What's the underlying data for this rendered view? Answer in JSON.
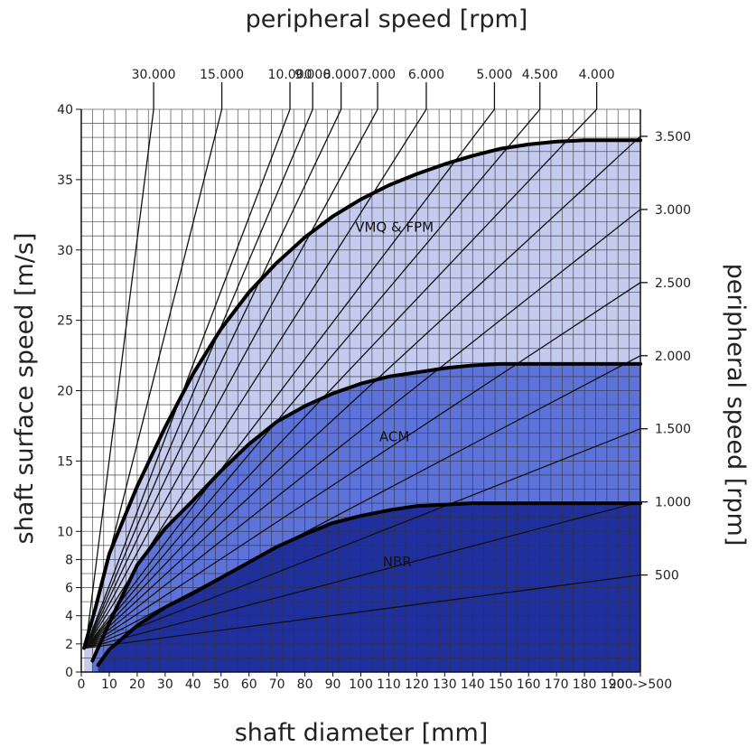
{
  "chart_data": {
    "type": "line",
    "title": "peripheral speed [rpm]",
    "xlabel": "shaft diameter [mm]",
    "ylabel": "shaft surface speed [m/s]",
    "right_label": "peripheral speed [rpm]",
    "xlim": [
      0,
      200
    ],
    "ylim": [
      0,
      40
    ],
    "grid": true,
    "x_ticks": [
      "0",
      "10",
      "20",
      "30",
      "40",
      "50",
      "60",
      "70",
      "80",
      "90",
      "100",
      "110",
      "120",
      "130",
      "140",
      "150",
      "160",
      "170",
      "180",
      "190",
      "200->500"
    ],
    "y_ticks": [
      {
        "v": 0,
        "label": "0"
      },
      {
        "v": 2,
        "label": "2"
      },
      {
        "v": 4,
        "label": "4"
      },
      {
        "v": 6,
        "label": "6"
      },
      {
        "v": 8,
        "label": "8"
      },
      {
        "v": 10,
        "label": "10"
      },
      {
        "v": 15,
        "label": "15"
      },
      {
        "v": 20,
        "label": "20"
      },
      {
        "v": 25,
        "label": "25"
      },
      {
        "v": 30,
        "label": "30"
      },
      {
        "v": 35,
        "label": "35"
      },
      {
        "v": 40,
        "label": "40"
      }
    ],
    "rpm_lines": [
      {
        "rpm": 30000,
        "label": "30.000",
        "edge": "top"
      },
      {
        "rpm": 15000,
        "label": "15.000",
        "edge": "top"
      },
      {
        "rpm": 10000,
        "label": "10.000",
        "edge": "top"
      },
      {
        "rpm": 9000,
        "label": "9.000",
        "edge": "top"
      },
      {
        "rpm": 8000,
        "label": "8.000",
        "edge": "top"
      },
      {
        "rpm": 7000,
        "label": "7.000",
        "edge": "top"
      },
      {
        "rpm": 6000,
        "label": "6.000",
        "edge": "top"
      },
      {
        "rpm": 5000,
        "label": "5.000",
        "edge": "top"
      },
      {
        "rpm": 4500,
        "label": "4.500",
        "edge": "top"
      },
      {
        "rpm": 4000,
        "label": "4.000",
        "edge": "top"
      },
      {
        "rpm": 3500,
        "label": "3.500",
        "edge": "right"
      },
      {
        "rpm": 3000,
        "label": "3.000",
        "edge": "right"
      },
      {
        "rpm": 2500,
        "label": "2.500",
        "edge": "right"
      },
      {
        "rpm": 2000,
        "label": "2.000",
        "edge": "right"
      },
      {
        "rpm": 1500,
        "label": "1.500",
        "edge": "right"
      },
      {
        "rpm": 1000,
        "label": "1.000",
        "edge": "right"
      },
      {
        "rpm": 500,
        "label": "500",
        "edge": "right"
      }
    ],
    "regions": [
      {
        "name": "VMQ & FPM",
        "fill": "#c5cbef",
        "label_at": {
          "x": 112,
          "y": 31.3
        },
        "curve": [
          {
            "x": 1,
            "y": 1.7
          },
          {
            "x": 5,
            "y": 4.5
          },
          {
            "x": 10,
            "y": 8.4
          },
          {
            "x": 20,
            "y": 13.2
          },
          {
            "x": 30,
            "y": 17.4
          },
          {
            "x": 40,
            "y": 21.2
          },
          {
            "x": 50,
            "y": 24.4
          },
          {
            "x": 60,
            "y": 27.0
          },
          {
            "x": 70,
            "y": 29.1
          },
          {
            "x": 80,
            "y": 30.9
          },
          {
            "x": 90,
            "y": 32.4
          },
          {
            "x": 100,
            "y": 33.6
          },
          {
            "x": 110,
            "y": 34.6
          },
          {
            "x": 120,
            "y": 35.4
          },
          {
            "x": 130,
            "y": 36.1
          },
          {
            "x": 140,
            "y": 36.7
          },
          {
            "x": 150,
            "y": 37.2
          },
          {
            "x": 160,
            "y": 37.5
          },
          {
            "x": 170,
            "y": 37.7
          },
          {
            "x": 180,
            "y": 37.8
          },
          {
            "x": 190,
            "y": 37.8
          },
          {
            "x": 200,
            "y": 37.8
          }
        ]
      },
      {
        "name": "ACM",
        "fill": "#5d73da",
        "label_at": {
          "x": 112,
          "y": 16.4
        },
        "curve": [
          {
            "x": 4,
            "y": 0.8
          },
          {
            "x": 10,
            "y": 3.5
          },
          {
            "x": 20,
            "y": 7.6
          },
          {
            "x": 30,
            "y": 10.2
          },
          {
            "x": 40,
            "y": 12.2
          },
          {
            "x": 50,
            "y": 14.3
          },
          {
            "x": 60,
            "y": 16.2
          },
          {
            "x": 70,
            "y": 17.8
          },
          {
            "x": 80,
            "y": 18.9
          },
          {
            "x": 90,
            "y": 19.8
          },
          {
            "x": 100,
            "y": 20.5
          },
          {
            "x": 110,
            "y": 21.0
          },
          {
            "x": 120,
            "y": 21.3
          },
          {
            "x": 130,
            "y": 21.6
          },
          {
            "x": 140,
            "y": 21.8
          },
          {
            "x": 150,
            "y": 21.9
          },
          {
            "x": 160,
            "y": 21.9
          },
          {
            "x": 170,
            "y": 21.9
          },
          {
            "x": 180,
            "y": 21.9
          },
          {
            "x": 190,
            "y": 21.9
          },
          {
            "x": 200,
            "y": 21.9
          }
        ]
      },
      {
        "name": "NBR",
        "fill": "#1f2f9e",
        "label_at": {
          "x": 113,
          "y": 7.5
        },
        "curve": [
          {
            "x": 6,
            "y": 0.5
          },
          {
            "x": 10,
            "y": 1.6
          },
          {
            "x": 20,
            "y": 3.3
          },
          {
            "x": 30,
            "y": 4.6
          },
          {
            "x": 40,
            "y": 5.6
          },
          {
            "x": 50,
            "y": 6.7
          },
          {
            "x": 60,
            "y": 7.8
          },
          {
            "x": 70,
            "y": 8.9
          },
          {
            "x": 80,
            "y": 9.8
          },
          {
            "x": 90,
            "y": 10.6
          },
          {
            "x": 100,
            "y": 11.1
          },
          {
            "x": 110,
            "y": 11.5
          },
          {
            "x": 120,
            "y": 11.8
          },
          {
            "x": 130,
            "y": 11.9
          },
          {
            "x": 140,
            "y": 12.0
          },
          {
            "x": 150,
            "y": 12.0
          },
          {
            "x": 160,
            "y": 12.0
          },
          {
            "x": 170,
            "y": 12.0
          },
          {
            "x": 180,
            "y": 12.0
          },
          {
            "x": 190,
            "y": 12.0
          },
          {
            "x": 200,
            "y": 12.0
          }
        ]
      }
    ]
  }
}
